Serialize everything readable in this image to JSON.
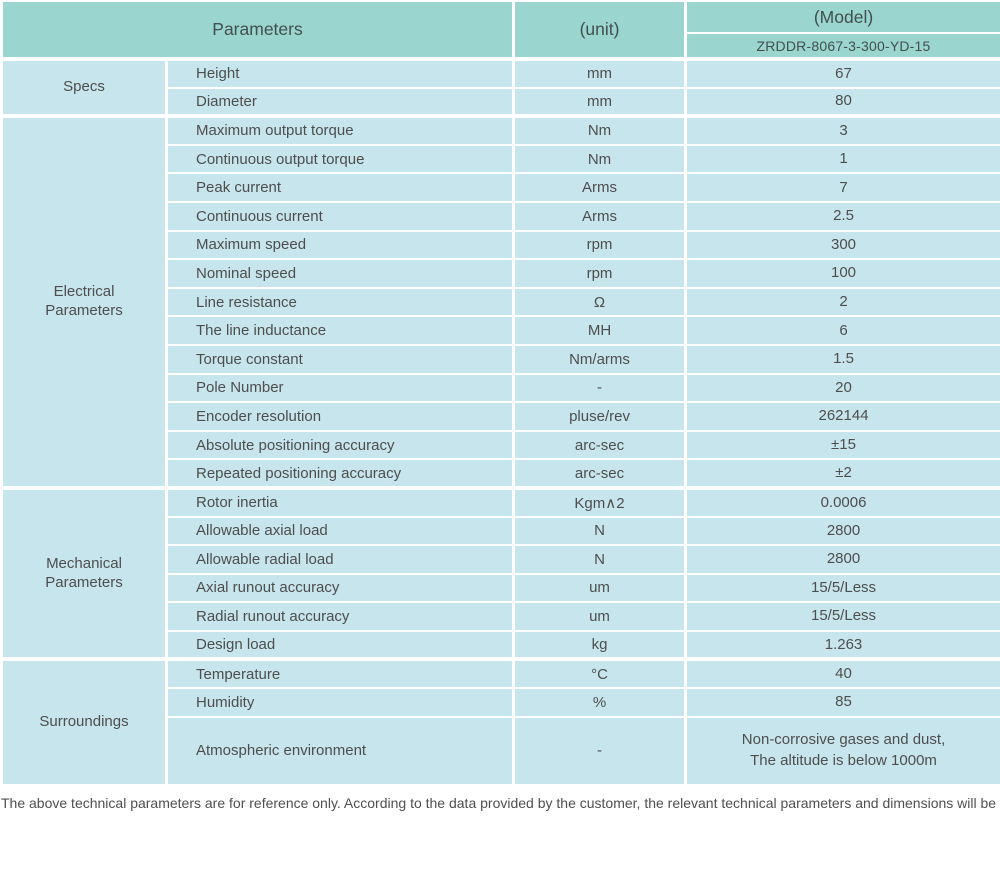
{
  "header": {
    "parameters_label": "Parameters",
    "unit_label": "(unit)",
    "model_label": "(Model)",
    "model_value": "ZRDDR-8067-3-300-YD-15"
  },
  "sections": [
    {
      "name": "Specs",
      "rows": [
        {
          "param": "Height",
          "unit": "mm",
          "value": "67"
        },
        {
          "param": "Diameter",
          "unit": "mm",
          "value": "80"
        }
      ]
    },
    {
      "name": "Electrical\nParameters",
      "rows": [
        {
          "param": "Maximum output torque",
          "unit": "Nm",
          "value": "3"
        },
        {
          "param": "Continuous output torque",
          "unit": "Nm",
          "value": "1"
        },
        {
          "param": "Peak current",
          "unit": "Arms",
          "value": "7"
        },
        {
          "param": "Continuous current",
          "unit": "Arms",
          "value": "2.5"
        },
        {
          "param": "Maximum speed",
          "unit": "rpm",
          "value": "300"
        },
        {
          "param": "Nominal speed",
          "unit": "rpm",
          "value": "100"
        },
        {
          "param": "Line resistance",
          "unit": "Ω",
          "value": "2"
        },
        {
          "param": "The line inductance",
          "unit": "MH",
          "value": "6"
        },
        {
          "param": "Torque constant",
          "unit": "Nm/arms",
          "value": "1.5"
        },
        {
          "param": "Pole Number",
          "unit": "-",
          "value": "20"
        },
        {
          "param": "Encoder resolution",
          "unit": "pluse/rev",
          "value": "262144"
        },
        {
          "param": "Absolute positioning accuracy",
          "unit": "arc-sec",
          "value": "±15"
        },
        {
          "param": "Repeated positioning accuracy",
          "unit": "arc-sec",
          "value": "±2"
        }
      ]
    },
    {
      "name": "Mechanical\nParameters",
      "rows": [
        {
          "param": "Rotor inertia",
          "unit": "Kgm∧2",
          "value": "0.0006"
        },
        {
          "param": "Allowable axial load",
          "unit": "N",
          "value": "2800"
        },
        {
          "param": "Allowable radial load",
          "unit": "N",
          "value": "2800"
        },
        {
          "param": "Axial runout accuracy",
          "unit": "um",
          "value": "15/5/Less"
        },
        {
          "param": "Radial runout accuracy",
          "unit": "um",
          "value": "15/5/Less"
        },
        {
          "param": "Design load",
          "unit": "kg",
          "value": "1.263"
        }
      ]
    },
    {
      "name": "Surroundings",
      "rows": [
        {
          "param": "Temperature",
          "unit": "°C",
          "value": "40"
        },
        {
          "param": "Humidity",
          "unit": "%",
          "value": "85"
        },
        {
          "param": "Atmospheric environment",
          "unit": "-",
          "value": "Non-corrosive gases and dust,\nThe altitude is below 1000m",
          "tall": true
        }
      ]
    }
  ],
  "footnote": "The above technical parameters are for reference only. According to the data provided by the customer, the relevant technical parameters and dimensions will be issued.",
  "colors": {
    "header_bg": "#9ad5cf",
    "body_bg": "#c7e5ec"
  }
}
